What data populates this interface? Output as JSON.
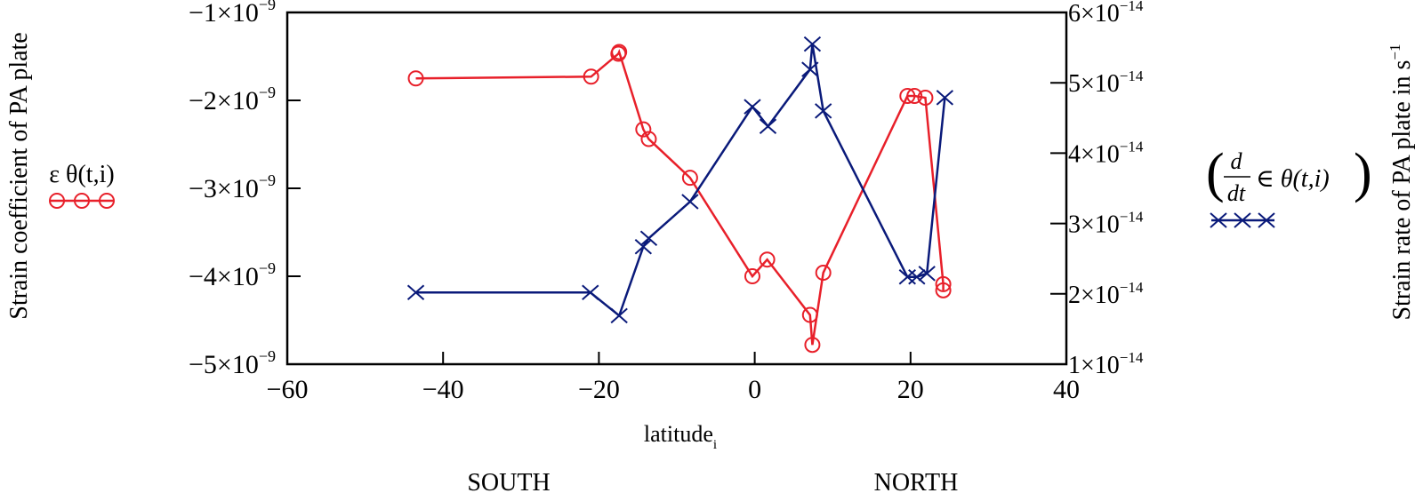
{
  "chart_data": {
    "type": "line",
    "title": "",
    "xlabel": "latitude",
    "xlabel_subscript": "i",
    "ylabel_left": "Strain coefficient of PA plate",
    "ylabel_right": "Strain rate of PA plate in s",
    "ylabel_right_exp": "−1",
    "xlim": [
      -60,
      40
    ],
    "ylim_left": [
      -5e-09,
      -1e-09
    ],
    "ylim_right": [
      1e-14,
      6e-14
    ],
    "grid": false,
    "x_ticks": [
      {
        "value": -60,
        "label": "−60"
      },
      {
        "value": -40,
        "label": "−40"
      },
      {
        "value": -20,
        "label": "−20"
      },
      {
        "value": 0,
        "label": "0"
      },
      {
        "value": 20,
        "label": "20"
      },
      {
        "value": 40,
        "label": "40"
      }
    ],
    "y_left_ticks": [
      {
        "value": -1e-09,
        "mant": "−1×10",
        "exp": "−9"
      },
      {
        "value": -2e-09,
        "mant": "−2×10",
        "exp": "−9"
      },
      {
        "value": -3e-09,
        "mant": "−3×10",
        "exp": "−9"
      },
      {
        "value": -4e-09,
        "mant": "−4×10",
        "exp": "−9"
      },
      {
        "value": -5e-09,
        "mant": "−5×10",
        "exp": "−9"
      }
    ],
    "y_right_ticks": [
      {
        "value": 6e-14,
        "mant": "6×10",
        "exp": "−14"
      },
      {
        "value": 5e-14,
        "mant": "5×10",
        "exp": "−14"
      },
      {
        "value": 4e-14,
        "mant": "4×10",
        "exp": "−14"
      },
      {
        "value": 3e-14,
        "mant": "3×10",
        "exp": "−14"
      },
      {
        "value": 2e-14,
        "mant": "2×10",
        "exp": "−14"
      },
      {
        "value": 1e-14,
        "mant": "1×10",
        "exp": "−14"
      }
    ],
    "series": [
      {
        "name": "ε θ(t,i)",
        "axis": "left",
        "color": "#e8202a",
        "marker": "circle",
        "x": [
          -43.5,
          -21.0,
          -17.5,
          -17.4,
          -14.3,
          -13.6,
          -8.3,
          -0.3,
          1.6,
          7.1,
          7.4,
          8.8,
          19.6,
          20.5,
          21.9,
          24.2,
          24.2
        ],
        "y": [
          -1.75e-09,
          -1.73e-09,
          -1.47e-09,
          -1.45e-09,
          -2.33e-09,
          -2.44e-09,
          -2.88e-09,
          -4e-09,
          -3.81e-09,
          -4.44e-09,
          -4.78e-09,
          -3.96e-09,
          -1.95e-09,
          -1.95e-09,
          -1.97e-09,
          -4.09e-09,
          -4.16e-09
        ]
      },
      {
        "name": "d/dt ∈ θ(t,i)",
        "axis": "right",
        "color": "#0a1a7a",
        "marker": "x",
        "x": [
          -43.5,
          -21.1,
          -17.4,
          -14.3,
          -13.6,
          -8.3,
          -0.3,
          1.7,
          7.1,
          7.4,
          8.8,
          19.6,
          20.8,
          22.1,
          24.4
        ],
        "y": [
          2.02e-14,
          2.02e-14,
          1.69e-14,
          2.67e-14,
          2.79e-14,
          3.31e-14,
          4.66e-14,
          4.38e-14,
          5.19e-14,
          5.55e-14,
          4.6e-14,
          2.24e-14,
          2.24e-14,
          2.29e-14,
          4.79e-14
        ]
      }
    ],
    "legend_left": {
      "label": "ε θ(t,i)"
    },
    "legend_right": {
      "numerator": "d",
      "denominator": "dt",
      "expr": "∈ θ(t,i)"
    },
    "annotations": {
      "south": "SOUTH",
      "north": "NORTH"
    }
  }
}
